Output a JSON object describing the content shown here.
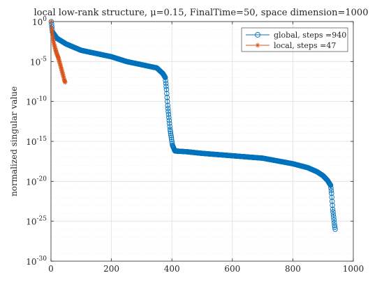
{
  "chart_data": {
    "type": "scatter",
    "title": "local low-rank structure, μ=0.15, FinalTime=50, space dimension=1000",
    "xlabel": "",
    "ylabel": "normalized singular value",
    "xlim": [
      0,
      1000
    ],
    "ylim_exponent": [
      -30,
      0
    ],
    "yscale": "log",
    "grid": true,
    "legend_position": "top-right",
    "x_ticks": [
      "0",
      "200",
      "400",
      "600",
      "800",
      "1000"
    ],
    "y_tick_mantissa": "10",
    "y_tick_exponents": [
      "0",
      "-5",
      "-10",
      "-15",
      "-20",
      "-25",
      "-30"
    ],
    "series": [
      {
        "name": "global, steps =940",
        "color": "#0072BD",
        "marker": "o",
        "n_points": 940,
        "log10_profile_x": [
          1,
          5,
          20,
          50,
          100,
          150,
          200,
          250,
          300,
          350,
          370,
          378,
          382,
          386,
          390,
          394,
          398,
          402,
          410,
          450,
          500,
          600,
          700,
          800,
          850,
          880,
          900,
          915,
          925,
          928,
          930,
          932,
          935,
          938,
          940
        ],
        "log10_profile_y": [
          0,
          -1.3,
          -2.1,
          -2.8,
          -3.6,
          -4.0,
          -4.4,
          -5.0,
          -5.4,
          -5.8,
          -6.5,
          -7.0,
          -8.5,
          -10.5,
          -12.0,
          -13.5,
          -14.5,
          -15.5,
          -16.2,
          -16.3,
          -16.5,
          -16.8,
          -17.1,
          -17.8,
          -18.3,
          -18.8,
          -19.3,
          -19.9,
          -20.5,
          -21.5,
          -22.5,
          -23.5,
          -24.5,
          -25.5,
          -26.0
        ]
      },
      {
        "name": "local, steps =47",
        "color": "#D95319",
        "marker": "*",
        "n_points": 47,
        "log10_profile_x": [
          1,
          2,
          4,
          6,
          10,
          15,
          20,
          25,
          30,
          35,
          40,
          44,
          47
        ],
        "log10_profile_y": [
          0,
          -0.8,
          -1.4,
          -2.0,
          -2.8,
          -3.5,
          -4.1,
          -4.6,
          -5.3,
          -6.0,
          -6.7,
          -7.3,
          -7.6
        ]
      }
    ]
  }
}
